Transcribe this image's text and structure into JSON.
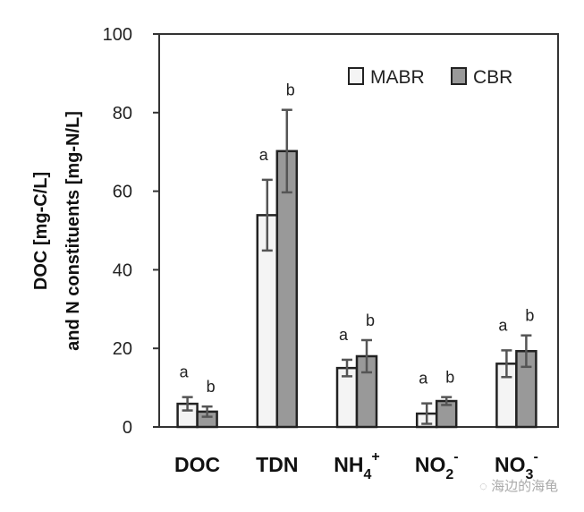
{
  "chart_data": {
    "type": "bar",
    "title": "",
    "xlabel": "",
    "ylabel": [
      "DOC [mg-C/L]",
      "and N constituents [mg-N/L]"
    ],
    "ylim": [
      0,
      100
    ],
    "yticks": [
      "0",
      "20",
      "40",
      "60",
      "80",
      "100"
    ],
    "categories": [
      {
        "base": "DOC",
        "sub": "",
        "sup": ""
      },
      {
        "base": "TDN",
        "sub": "",
        "sup": ""
      },
      {
        "base": "NH",
        "sub": "4",
        "sup": "+"
      },
      {
        "base": "NO",
        "sub": "2",
        "sup": "-"
      },
      {
        "base": "NO",
        "sub": "3",
        "sup": "-"
      }
    ],
    "series": [
      {
        "name": "MABR",
        "color": "#f4f4f4",
        "values": [
          5.9,
          53.9,
          15.0,
          3.4,
          16.1
        ],
        "errors": [
          1.7,
          9.0,
          2.1,
          2.6,
          3.4
        ],
        "labels": [
          "a",
          "a",
          "a",
          "a",
          "a"
        ]
      },
      {
        "name": "CBR",
        "color": "#999999",
        "values": [
          3.9,
          70.2,
          18.0,
          6.6,
          19.3
        ],
        "errors": [
          1.3,
          10.5,
          4.1,
          1.0,
          4.0
        ],
        "labels": [
          "b",
          "b",
          "b",
          "b",
          "b"
        ]
      }
    ],
    "legend_position": "top-right",
    "grid": false
  },
  "watermark": "海边的海龟"
}
